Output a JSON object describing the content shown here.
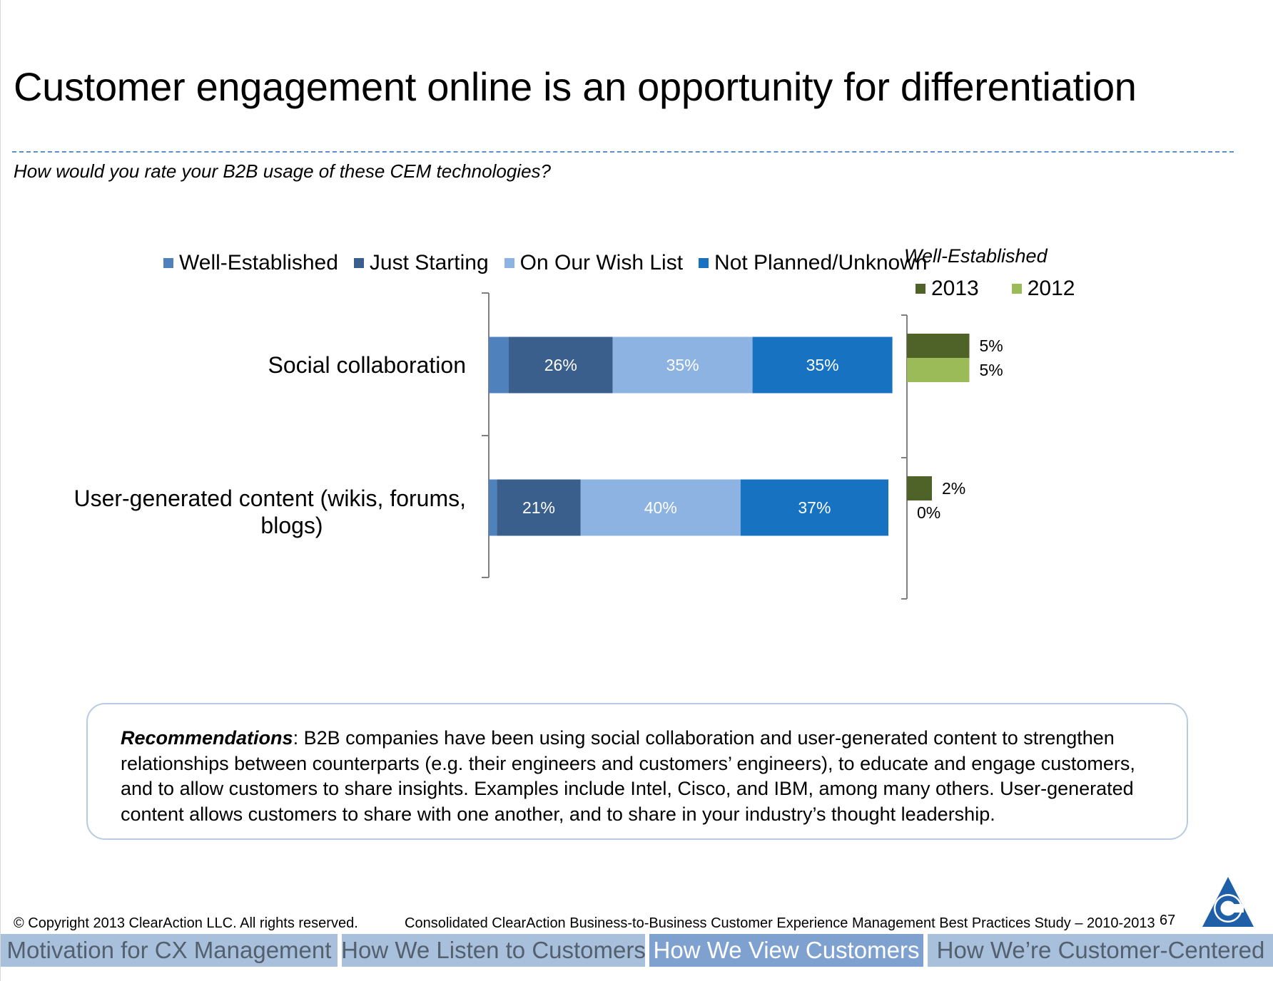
{
  "slide": {
    "title": "Customer engagement online is an opportunity for differentiation",
    "subtitle": "How would you rate your B2B usage of these CEM technologies?"
  },
  "legend_main": [
    "Well-Established",
    "Just Starting",
    "On Our Wish List",
    "Not Planned/Unknown"
  ],
  "legend_right": {
    "title": "Well-Established",
    "items": [
      "2013",
      "2012"
    ]
  },
  "colors": {
    "well_established": "#4f81bd",
    "just_starting": "#3a5f8c",
    "wish_list": "#8db3e2",
    "not_planned": "#1773c2",
    "y2013": "#4f6228",
    "y2012": "#9bbb59"
  },
  "chart_data": [
    {
      "type": "bar",
      "orientation": "horizontal",
      "stacked": true,
      "categories": [
        "Social collaboration",
        "User-generated content (wikis, forums, blogs)"
      ],
      "series": [
        {
          "name": "Well-Established",
          "values": [
            5,
            2
          ],
          "labels": [
            "",
            ""
          ]
        },
        {
          "name": "Just Starting",
          "values": [
            26,
            21
          ],
          "labels": [
            "26%",
            "21%"
          ]
        },
        {
          "name": "On Our Wish List",
          "values": [
            35,
            40
          ],
          "labels": [
            "35%",
            "40%"
          ]
        },
        {
          "name": "Not Planned/Unknown",
          "values": [
            35,
            37
          ],
          "labels": [
            "35%",
            "37%"
          ]
        }
      ],
      "xlim": [
        0,
        100
      ]
    },
    {
      "type": "bar",
      "orientation": "horizontal",
      "title": "Well-Established",
      "categories": [
        "Social collaboration",
        "User-generated content (wikis, forums, blogs)"
      ],
      "series": [
        {
          "name": "2013",
          "values": [
            5,
            2
          ],
          "labels": [
            "5%",
            "2%"
          ]
        },
        {
          "name": "2012",
          "values": [
            5,
            0
          ],
          "labels": [
            "5%",
            "0%"
          ]
        }
      ]
    }
  ],
  "recommendations": {
    "label": "Recommendations",
    "text": ":  B2B companies have been using social collaboration and user-generated content to strengthen relationships between counterparts (e.g. their engineers and customers’ engineers), to educate and engage customers, and to allow customers to share insights. Examples include Intel, Cisco, and IBM, among many others. User-generated content allows customers to share with one another, and to share in your industry’s thought leadership."
  },
  "footer": {
    "copyright": "© Copyright 2013 ClearAction LLC. All rights reserved.",
    "study": "Consolidated ClearAction Business-to-Business Customer Experience Management Best Practices Study – 2010-2013",
    "page": "67"
  },
  "nav": {
    "tabs": [
      "Motivation for CX Management",
      "How We Listen to Customers",
      "How We View Customers",
      "How We’re Customer-Centered"
    ],
    "active": 2
  }
}
